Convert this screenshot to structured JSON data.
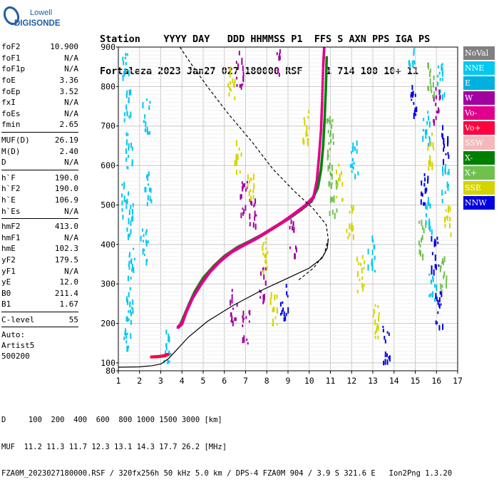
{
  "brand": {
    "line1": "Lowell",
    "line2": "DIGISONDE"
  },
  "header": {
    "line1": "Station    YYYY DAY   DDD HHMMSS P1  FFS S AXN PPS IGA PS",
    "line2": "Fortaleza 2023 Jan27 027 180000 RSF    1 714 100 10+ 11"
  },
  "params": {
    "group1": [
      {
        "name": "foF2",
        "value": "10.900"
      },
      {
        "name": "foF1",
        "value": "N/A"
      },
      {
        "name": "foF1p",
        "value": "N/A"
      },
      {
        "name": "foE",
        "value": "3.36"
      },
      {
        "name": "foEp",
        "value": "3.52"
      },
      {
        "name": "fxI",
        "value": "N/A"
      },
      {
        "name": "foEs",
        "value": "N/A"
      },
      {
        "name": "fmin",
        "value": "2.65"
      }
    ],
    "group2": [
      {
        "name": "MUF(D)",
        "value": "26.19"
      },
      {
        "name": "M(D)",
        "value": "2.40"
      },
      {
        "name": "D",
        "value": "N/A"
      }
    ],
    "group3": [
      {
        "name": "h`F",
        "value": "190.0"
      },
      {
        "name": "h`F2",
        "value": "190.0"
      },
      {
        "name": "h`E",
        "value": "106.9"
      },
      {
        "name": "h`Es",
        "value": "N/A"
      }
    ],
    "group4": [
      {
        "name": "hmF2",
        "value": "413.0"
      },
      {
        "name": "hmF1",
        "value": "N/A"
      },
      {
        "name": "hmE",
        "value": "102.3"
      },
      {
        "name": "yF2",
        "value": "179.5"
      },
      {
        "name": "yF1",
        "value": "N/A"
      },
      {
        "name": "yE",
        "value": "12.0"
      },
      {
        "name": "B0",
        "value": "211.4"
      },
      {
        "name": "B1",
        "value": "1.67"
      }
    ],
    "group5": [
      {
        "name": "C-level",
        "value": "55"
      }
    ],
    "auto": [
      "Auto:",
      "Artist5",
      "500200"
    ]
  },
  "legend": [
    {
      "label": "NoVal",
      "color": "#808080"
    },
    {
      "label": "NNE",
      "color": "#00c8f0"
    },
    {
      "label": "E",
      "color": "#00b0e0"
    },
    {
      "label": "W",
      "color": "#a000a0"
    },
    {
      "label": "Vo-",
      "color": "#e0008c"
    },
    {
      "label": "Vo+",
      "color": "#ff0040"
    },
    {
      "label": "SSW",
      "color": "#f4b8b8"
    },
    {
      "label": "X-",
      "color": "#008000"
    },
    {
      "label": "X+",
      "color": "#70c050"
    },
    {
      "label": "SSE",
      "color": "#d4d400"
    },
    {
      "label": "NNW",
      "color": "#0000e0"
    }
  ],
  "footer": {
    "line1": "D     100  200  400  600  800 1000 1500 3000 [km]",
    "line2": "MUF  11.2 11.3 11.7 12.3 13.1 14.3 17.7 26.2 [MHz]",
    "line3": "FZA0M_2023027180000.RSF / 320fx256h 50 kHz 5.0 km / DPS-4 FZA0M 904 / 3.9 S 321.6 E   Ion2Png 1.3.20"
  },
  "chart_data": {
    "type": "scatter",
    "title": "",
    "xlabel": "",
    "ylabel": "",
    "xlim": [
      1,
      17
    ],
    "ylim": [
      80,
      900
    ],
    "x_ticks": [
      1,
      2,
      3,
      4,
      5,
      6,
      7,
      8,
      9,
      10,
      11,
      12,
      13,
      14,
      15,
      16,
      17
    ],
    "y_ticks": [
      100,
      200,
      300,
      400,
      500,
      600,
      700,
      800,
      900
    ],
    "grid": true,
    "series": [
      {
        "name": "X-",
        "color": "#008000",
        "points": [
          [
            3.9,
            195
          ],
          [
            4.3,
            245
          ],
          [
            4.6,
            280
          ],
          [
            5.0,
            315
          ],
          [
            5.5,
            345
          ],
          [
            6.0,
            370
          ],
          [
            6.6,
            392
          ],
          [
            7.2,
            408
          ],
          [
            7.8,
            425
          ],
          [
            8.4,
            445
          ],
          [
            9.0,
            465
          ],
          [
            9.6,
            488
          ],
          [
            10.1,
            510
          ],
          [
            10.4,
            545
          ],
          [
            10.55,
            590
          ],
          [
            10.65,
            650
          ],
          [
            10.72,
            720
          ],
          [
            10.78,
            800
          ],
          [
            10.82,
            880
          ]
        ]
      },
      {
        "name": "Vo-",
        "color": "#e0008c",
        "points": [
          [
            3.8,
            190
          ],
          [
            4.0,
            200
          ],
          [
            4.2,
            230
          ],
          [
            4.5,
            265
          ],
          [
            4.9,
            300
          ],
          [
            5.3,
            330
          ],
          [
            5.8,
            358
          ],
          [
            6.3,
            380
          ],
          [
            6.9,
            398
          ],
          [
            7.5,
            415
          ],
          [
            8.1,
            435
          ],
          [
            8.7,
            455
          ],
          [
            9.3,
            478
          ],
          [
            9.8,
            498
          ],
          [
            10.2,
            520
          ],
          [
            10.35,
            560
          ],
          [
            10.45,
            620
          ],
          [
            10.55,
            690
          ],
          [
            10.6,
            760
          ],
          [
            10.65,
            850
          ],
          [
            10.7,
            900
          ]
        ]
      },
      {
        "name": "Vo+",
        "color": "#ff0040",
        "points": [
          [
            2.55,
            115
          ],
          [
            2.9,
            116
          ],
          [
            3.15,
            118
          ],
          [
            3.35,
            122
          ]
        ]
      },
      {
        "name": "NNE",
        "color": "#00c8f0",
        "points": [
          [
            1.3,
            870
          ],
          [
            1.4,
            760
          ],
          [
            1.5,
            640
          ],
          [
            1.3,
            520
          ],
          [
            1.5,
            470
          ],
          [
            1.6,
            360
          ],
          [
            1.5,
            250
          ],
          [
            1.4,
            180
          ],
          [
            2.3,
            730
          ],
          [
            2.4,
            550
          ],
          [
            2.2,
            400
          ],
          [
            3.3,
            150
          ],
          [
            12.1,
            620
          ],
          [
            12.9,
            380
          ],
          [
            14.8,
            900
          ],
          [
            15.5,
            700
          ],
          [
            15.6,
            480
          ],
          [
            15.8,
            300
          ],
          [
            16.2,
            820
          ],
          [
            16.4,
            560
          ]
        ]
      },
      {
        "name": "W",
        "color": "#a000a0",
        "points": [
          [
            6.7,
            850
          ],
          [
            6.9,
            520
          ],
          [
            7.3,
            480
          ],
          [
            7.8,
            300
          ],
          [
            8.5,
            880
          ],
          [
            9.2,
            420
          ],
          [
            6.4,
            250
          ],
          [
            7.0,
            190
          ],
          [
            16.0,
            760
          ]
        ]
      },
      {
        "name": "SSE",
        "color": "#d4d400",
        "points": [
          [
            6.3,
            820
          ],
          [
            6.6,
            620
          ],
          [
            7.2,
            560
          ],
          [
            7.9,
            380
          ],
          [
            8.3,
            240
          ],
          [
            9.8,
            700
          ],
          [
            11.4,
            560
          ],
          [
            11.9,
            460
          ],
          [
            12.4,
            330
          ],
          [
            13.1,
            210
          ],
          [
            15.7,
            640
          ],
          [
            16.5,
            470
          ]
        ]
      },
      {
        "name": "NNW",
        "color": "#0000e0",
        "points": [
          [
            8.8,
            260
          ],
          [
            13.6,
            150
          ],
          [
            14.9,
            760
          ],
          [
            15.4,
            540
          ],
          [
            15.9,
            380
          ],
          [
            16.1,
            240
          ],
          [
            16.4,
            660
          ]
        ]
      },
      {
        "name": "X+",
        "color": "#70c050",
        "points": [
          [
            10.9,
            600
          ],
          [
            10.95,
            700
          ],
          [
            11.1,
            520
          ],
          [
            15.3,
            420
          ],
          [
            15.7,
            820
          ],
          [
            16.3,
            330
          ]
        ]
      }
    ],
    "profile_curves": [
      {
        "name": "solid",
        "style": "solid",
        "points": [
          [
            1.0,
            89
          ],
          [
            2.0,
            90
          ],
          [
            2.6,
            93
          ],
          [
            3.0,
            97
          ],
          [
            3.35,
            110
          ],
          [
            3.7,
            130
          ],
          [
            4.3,
            165
          ],
          [
            5.2,
            205
          ],
          [
            6.4,
            245
          ],
          [
            7.8,
            285
          ],
          [
            9.0,
            315
          ],
          [
            10.0,
            340
          ],
          [
            10.6,
            365
          ],
          [
            10.85,
            390
          ],
          [
            10.9,
            413
          ]
        ]
      },
      {
        "name": "dashed",
        "style": "dashed",
        "points": [
          [
            3.9,
            900
          ],
          [
            4.4,
            860
          ],
          [
            5.2,
            800
          ],
          [
            6.2,
            730
          ],
          [
            7.3,
            660
          ],
          [
            8.3,
            590
          ],
          [
            9.3,
            535
          ],
          [
            10.2,
            490
          ],
          [
            10.8,
            450
          ],
          [
            10.9,
            413
          ],
          [
            10.7,
            375
          ],
          [
            10.2,
            340
          ],
          [
            9.5,
            310
          ]
        ]
      }
    ]
  }
}
